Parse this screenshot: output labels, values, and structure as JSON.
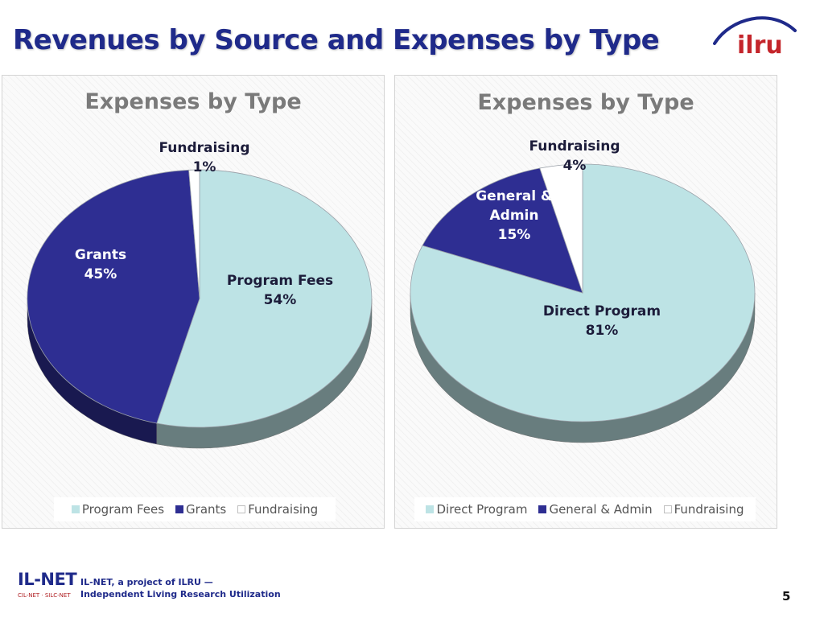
{
  "slide": {
    "title": "Revenues by Source and Expenses by Type",
    "logo_text": "ilru",
    "page_number": "5"
  },
  "footer": {
    "logo_main": "IL-NET",
    "logo_sub": "CIL-NET · SILC-NET",
    "tagline_line1": "IL-NET, a project of ILRU —",
    "tagline_line2": "Independent Living Research Utilization"
  },
  "colors": {
    "title": "#1f2a8a",
    "light_teal": "#bde3e5",
    "navy": "#2e2e92",
    "white": "#ffffff",
    "logo_red": "#c4252b"
  },
  "chart_data": [
    {
      "type": "pie",
      "title": "Expenses by Type",
      "legend_position": "bottom",
      "start_angle_deg": 0,
      "direction": "clockwise",
      "slices": [
        {
          "label": "Program Fees",
          "value": 54,
          "display": "54%",
          "color": "#bde3e5",
          "label_lines": [
            "Program Fees",
            "54%"
          ]
        },
        {
          "label": "Grants",
          "value": 45,
          "display": "45%",
          "color": "#2e2e92",
          "label_lines": [
            "Grants",
            "45%"
          ]
        },
        {
          "label": "Fundraising",
          "value": 1,
          "display": "1%",
          "color": "#ffffff",
          "label_lines": [
            "Fundraising",
            "1%"
          ]
        }
      ]
    },
    {
      "type": "pie",
      "title": "Expenses by Type",
      "legend_position": "bottom",
      "start_angle_deg": 0,
      "direction": "clockwise",
      "slices": [
        {
          "label": "Direct Program",
          "value": 81,
          "display": "81%",
          "color": "#bde3e5",
          "label_lines": [
            "Direct Program",
            "81%"
          ]
        },
        {
          "label": "General & Admin",
          "value": 15,
          "display": "15%",
          "color": "#2e2e92",
          "label_lines": [
            "General &",
            "Admin",
            "15%"
          ]
        },
        {
          "label": "Fundraising",
          "value": 4,
          "display": "4%",
          "color": "#ffffff",
          "label_lines": [
            "Fundraising",
            "4%"
          ]
        }
      ]
    }
  ]
}
